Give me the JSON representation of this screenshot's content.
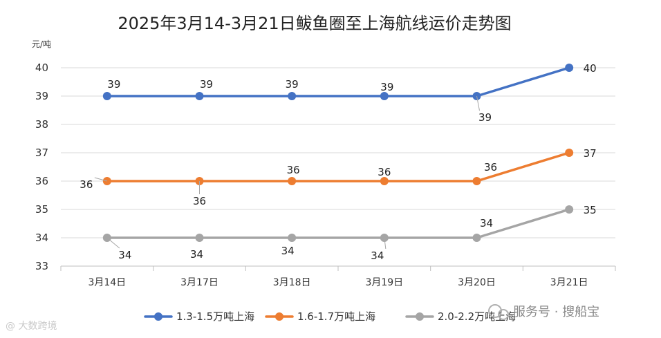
{
  "chart_data": {
    "type": "line",
    "title": "2025年3月14-3月21日鲅鱼圈至上海航线运价走势图",
    "ylabel": "元/吨",
    "categories": [
      "3月14日",
      "3月17日",
      "3月18日",
      "3月19日",
      "3月20日",
      "3月21日"
    ],
    "ylim": [
      33,
      40
    ],
    "yticks": [
      33,
      34,
      35,
      36,
      37,
      38,
      39,
      40
    ],
    "grid": true,
    "legend_position": "bottom",
    "series": [
      {
        "name": "1.3-1.5万吨上海",
        "color": "#4472c4",
        "values": [
          39,
          39,
          39,
          39,
          39,
          40
        ]
      },
      {
        "name": "1.6-1.7万吨上海",
        "color": "#ed7d31",
        "values": [
          36,
          36,
          36,
          36,
          36,
          37
        ]
      },
      {
        "name": "2.0-2.2万吨上海",
        "color": "#a5a5a5",
        "values": [
          34,
          34,
          34,
          34,
          34,
          35
        ]
      }
    ]
  },
  "watermarks": {
    "right": "服务号 · 搜船宝",
    "left": "@ 大数跨境"
  }
}
